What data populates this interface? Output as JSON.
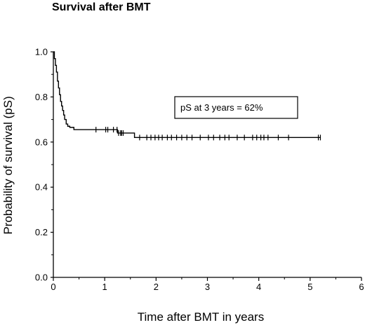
{
  "chart_data": {
    "type": "line",
    "title": "Survival after BMT",
    "xlabel": "Time after BMT in years",
    "ylabel": "Probability of survival (pS)",
    "xlim": [
      0,
      6
    ],
    "ylim": [
      0.0,
      1.0
    ],
    "xticks": [
      0,
      1,
      2,
      3,
      4,
      5,
      6
    ],
    "yticks": [
      0.0,
      0.2,
      0.4,
      0.6,
      0.8,
      1.0
    ],
    "xtick_labels": [
      "0",
      "1",
      "2",
      "3",
      "4",
      "5",
      "6"
    ],
    "ytick_labels": [
      "0.0",
      "0.2",
      "0.4",
      "0.6",
      "0.8",
      "1.0"
    ],
    "grid": false,
    "annotation": "pS at 3 years = 62%",
    "series": [
      {
        "step_x": [
          0,
          0.02,
          0.04,
          0.06,
          0.08,
          0.1,
          0.12,
          0.14,
          0.16,
          0.18,
          0.2,
          0.22,
          0.25,
          0.28,
          0.32,
          0.4,
          1.25,
          1.58
        ],
        "step_y": [
          1.0,
          0.97,
          0.94,
          0.91,
          0.87,
          0.84,
          0.81,
          0.78,
          0.76,
          0.74,
          0.72,
          0.7,
          0.68,
          0.67,
          0.665,
          0.655,
          0.64,
          0.62
        ],
        "end_x": 5.2,
        "censored_x": [
          0.83,
          1.02,
          1.06,
          1.17,
          1.24,
          1.27,
          1.31,
          1.33,
          1.36,
          1.68,
          1.82,
          1.9,
          1.98,
          2.05,
          2.12,
          2.22,
          2.3,
          2.4,
          2.5,
          2.6,
          2.7,
          2.86,
          3.02,
          3.12,
          3.24,
          3.34,
          3.42,
          3.58,
          3.72,
          3.88,
          3.96,
          4.04,
          4.1,
          4.18,
          4.38,
          4.58,
          5.16,
          5.2
        ]
      }
    ]
  }
}
